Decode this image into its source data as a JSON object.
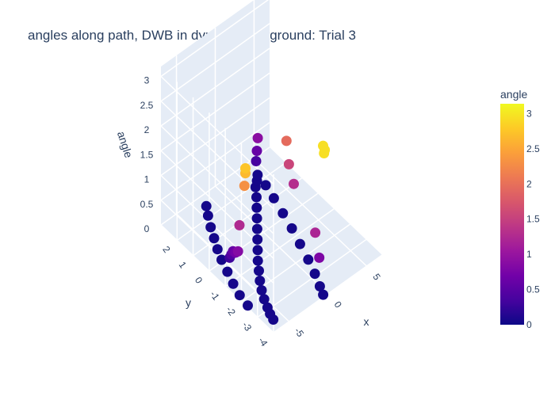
{
  "chart_data": {
    "type": "scatter",
    "dimension": "3d",
    "title": "angles along path, DWB in dynamic playground: Trial 3",
    "axes": {
      "x": {
        "label": "x",
        "ticks": [
          "-5",
          "0",
          "5"
        ],
        "range": [
          -7,
          7
        ]
      },
      "y": {
        "label": "y",
        "ticks": [
          "-4",
          "-3",
          "-2",
          "-1",
          "0",
          "1",
          "2"
        ],
        "range": [
          -4,
          3
        ]
      },
      "z": {
        "label": "angle",
        "ticks": [
          "0",
          "0.5",
          "1",
          "1.5",
          "2",
          "2.5",
          "3"
        ],
        "range": [
          0,
          3.2
        ]
      }
    },
    "colorbar": {
      "title": "angle",
      "colorscale": "plasma",
      "ticks": [
        "0",
        "0.5",
        "1",
        "1.5",
        "2",
        "2.5",
        "3"
      ],
      "range": [
        0,
        3.14
      ],
      "colors": [
        "#0d0887",
        "#46039f",
        "#7201a8",
        "#9c179e",
        "#bd3786",
        "#d8576b",
        "#ed7953",
        "#fb9f3a",
        "#fdca26",
        "#f0f921"
      ]
    },
    "points": [
      {
        "x": -6.2,
        "y": -3.6,
        "z": 0.05
      },
      {
        "x": -6.0,
        "y": -3.3,
        "z": 0.05
      },
      {
        "x": -5.7,
        "y": -3.0,
        "z": 0.05
      },
      {
        "x": -5.3,
        "y": -2.6,
        "z": 0.05
      },
      {
        "x": -4.8,
        "y": -2.2,
        "z": 0.05
      },
      {
        "x": -4.2,
        "y": -1.8,
        "z": 0.05
      },
      {
        "x": -3.5,
        "y": -1.4,
        "z": 0.05
      },
      {
        "x": -2.8,
        "y": -1.0,
        "z": 0.05
      },
      {
        "x": -2.0,
        "y": -0.6,
        "z": 0.05
      },
      {
        "x": -1.2,
        "y": -0.2,
        "z": 0.05
      },
      {
        "x": -0.4,
        "y": 0.2,
        "z": 0.05
      },
      {
        "x": 0.4,
        "y": 0.6,
        "z": 0.05
      },
      {
        "x": 1.2,
        "y": 1.0,
        "z": 0.05
      },
      {
        "x": 2.0,
        "y": 1.4,
        "z": 0.05
      },
      {
        "x": 2.7,
        "y": 1.8,
        "z": 0.05
      },
      {
        "x": 3.3,
        "y": 2.0,
        "z": 0.05
      },
      {
        "x": 3.8,
        "y": 2.2,
        "z": 0.05
      },
      {
        "x": 3.6,
        "y": 1.6,
        "z": 0.05
      },
      {
        "x": 3.2,
        "y": 0.9,
        "z": 0.05
      },
      {
        "x": 2.7,
        "y": 0.1,
        "z": 0.05
      },
      {
        "x": 2.2,
        "y": -0.7,
        "z": 0.05
      },
      {
        "x": 1.6,
        "y": -1.5,
        "z": 0.05
      },
      {
        "x": 1.0,
        "y": -2.3,
        "z": 0.05
      },
      {
        "x": 0.4,
        "y": -3.0,
        "z": 0.05
      },
      {
        "x": -0.2,
        "y": -3.6,
        "z": 0.05
      },
      {
        "x": -0.6,
        "y": -4.0,
        "z": 0.05
      },
      {
        "x": -7.0,
        "y": -2.4,
        "z": 0.05
      },
      {
        "x": -6.8,
        "y": -1.8,
        "z": 0.05
      },
      {
        "x": -6.4,
        "y": -1.2,
        "z": 0.05
      },
      {
        "x": -5.9,
        "y": -0.6,
        "z": 0.05
      },
      {
        "x": -5.4,
        "y": 0.0,
        "z": 0.05
      },
      {
        "x": -4.9,
        "y": 0.5,
        "z": 0.05
      },
      {
        "x": -4.3,
        "y": 1.0,
        "z": 0.05
      },
      {
        "x": -3.7,
        "y": 1.5,
        "z": 0.05
      },
      {
        "x": -3.0,
        "y": 2.0,
        "z": 0.05
      },
      {
        "x": -2.4,
        "y": 2.4,
        "z": 0.05
      },
      {
        "x": -6.6,
        "y": -1.6,
        "z": 0.85
      },
      {
        "x": -6.3,
        "y": -1.3,
        "z": 0.7
      },
      {
        "x": -6.0,
        "y": -1.0,
        "z": 0.6
      },
      {
        "x": -5.8,
        "y": -0.8,
        "z": 0.45
      },
      {
        "x": -5.6,
        "y": -0.6,
        "z": 0.3
      },
      {
        "x": -6.9,
        "y": -2.2,
        "z": 2.75
      },
      {
        "x": -6.9,
        "y": -2.2,
        "z": 2.65
      },
      {
        "x": -6.6,
        "y": -2.0,
        "z": 2.3
      },
      {
        "x": -6.0,
        "y": -1.4,
        "z": 1.25
      },
      {
        "x": -0.8,
        "y": -3.6,
        "z": 1.2
      },
      {
        "x": 1.0,
        "y": -1.4,
        "z": 1.3
      },
      {
        "x": 1.2,
        "y": -1.0,
        "z": 1.55
      },
      {
        "x": 1.3,
        "y": -0.8,
        "z": 1.95
      },
      {
        "x": -0.2,
        "y": -3.8,
        "z": 2.95
      },
      {
        "x": -0.4,
        "y": -4.0,
        "z": 2.95
      },
      {
        "x": -0.7,
        "y": -4.1,
        "z": 2.95
      },
      {
        "x": 3.4,
        "y": 2.0,
        "z": 0.9
      },
      {
        "x": 3.5,
        "y": 2.1,
        "z": 0.6
      },
      {
        "x": 3.6,
        "y": 2.2,
        "z": 0.35
      },
      {
        "x": -0.9,
        "y": -3.9,
        "z": 0.8
      }
    ]
  }
}
